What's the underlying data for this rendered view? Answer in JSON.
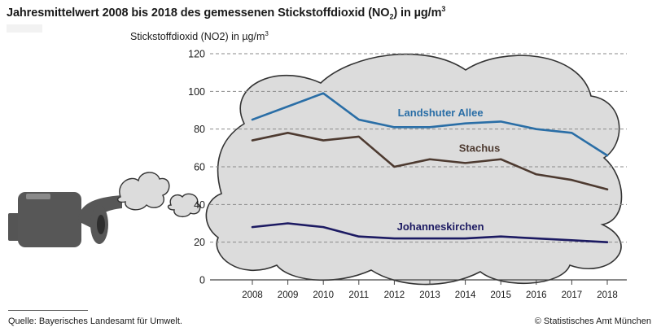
{
  "header": {
    "title_main": "Jahresmittelwert 2008 bis 2018 des gemessenen Stickstoffdioxid (NO",
    "title_sub": "2",
    "title_after": ") in µg/m",
    "title_sup": "3"
  },
  "footer": {
    "source": "Quelle: Bayerisches Landesamt für Umwelt.",
    "copyright": "© Statistisches Amt München"
  },
  "colors": {
    "landshuter": "#2a6ea6",
    "stachus": "#4d3a30",
    "johanneskirchen": "#1c1a62",
    "cloud_fill": "#dcdcdc",
    "cloud_stroke": "#333333",
    "grid": "#8a8a8a"
  },
  "chart_data": {
    "type": "line",
    "title": "Jahresmittelwert 2008 bis 2018 des gemessenen Stickstoffdioxid (NO2) in µg/m3",
    "ylabel_main": "Stickstoffdioxid (NO2) in µg/m",
    "ylabel_sup": "3",
    "xlabel": "",
    "ylim": [
      0,
      120
    ],
    "yticks": [
      0,
      20,
      40,
      60,
      80,
      100,
      120
    ],
    "grid": true,
    "categories": [
      "2008",
      "2009",
      "2010",
      "2011",
      "2012",
      "2013",
      "2014",
      "2015",
      "2016",
      "2017",
      "2018"
    ],
    "series": [
      {
        "name": "Landshuter Allee",
        "key": "landshuter",
        "values": [
          85,
          92,
          99,
          85,
          81,
          81,
          83,
          84,
          80,
          78,
          66
        ]
      },
      {
        "name": "Stachus",
        "key": "stachus",
        "values": [
          74,
          78,
          74,
          76,
          60,
          64,
          62,
          64,
          56,
          53,
          48
        ]
      },
      {
        "name": "Johanneskirchen",
        "key": "johanneskirchen",
        "values": [
          28,
          30,
          28,
          23,
          22,
          22,
          22,
          23,
          22,
          21,
          20
        ]
      }
    ]
  }
}
